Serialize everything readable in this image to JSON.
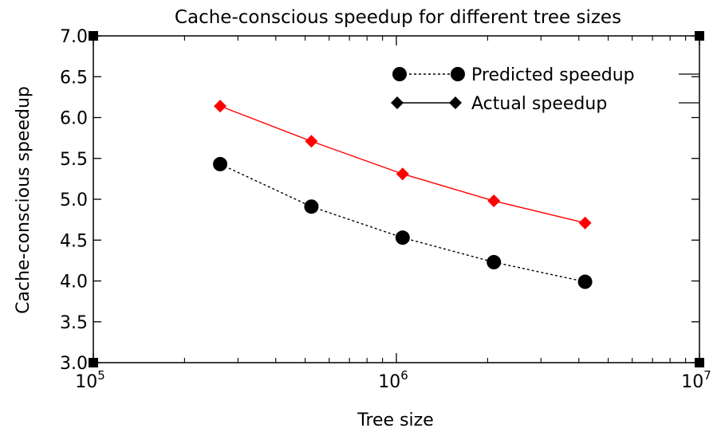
{
  "chart_data": {
    "type": "line",
    "title": "Cache-conscious speedup for different tree sizes",
    "xlabel": "Tree size",
    "ylabel": "Cache-conscious speedup",
    "x_scale": "log",
    "xlim": [
      100000,
      10000000
    ],
    "ylim": [
      3.0,
      7.0
    ],
    "grid": false,
    "legend_position": "top-right",
    "x_ticks": [
      {
        "value": 100000,
        "base": "10",
        "exponent": "5"
      },
      {
        "value": 1000000,
        "base": "10",
        "exponent": "6"
      },
      {
        "value": 10000000,
        "base": "10",
        "exponent": "7"
      }
    ],
    "y_ticks": [
      {
        "value": 3.0,
        "label": "3.0"
      },
      {
        "value": 3.5,
        "label": "3.5"
      },
      {
        "value": 4.0,
        "label": "4.0"
      },
      {
        "value": 4.5,
        "label": "4.5"
      },
      {
        "value": 5.0,
        "label": "5.0"
      },
      {
        "value": 5.5,
        "label": "5.5"
      },
      {
        "value": 6.0,
        "label": "6.0"
      },
      {
        "value": 6.5,
        "label": "6.5"
      },
      {
        "value": 7.0,
        "label": "7.0"
      }
    ],
    "x": [
      262144,
      524288,
      1048576,
      2097152,
      4194304
    ],
    "series": [
      {
        "name": "Predicted speedup",
        "values": [
          5.43,
          4.91,
          4.53,
          4.23,
          3.99
        ],
        "color": "#000000",
        "line_style": "dashed",
        "marker": "circle"
      },
      {
        "name": "Actual speedup",
        "values": [
          6.14,
          5.71,
          5.31,
          4.98,
          4.71
        ],
        "color": "#ff0000",
        "line_style": "solid",
        "marker": "diamond"
      }
    ]
  }
}
